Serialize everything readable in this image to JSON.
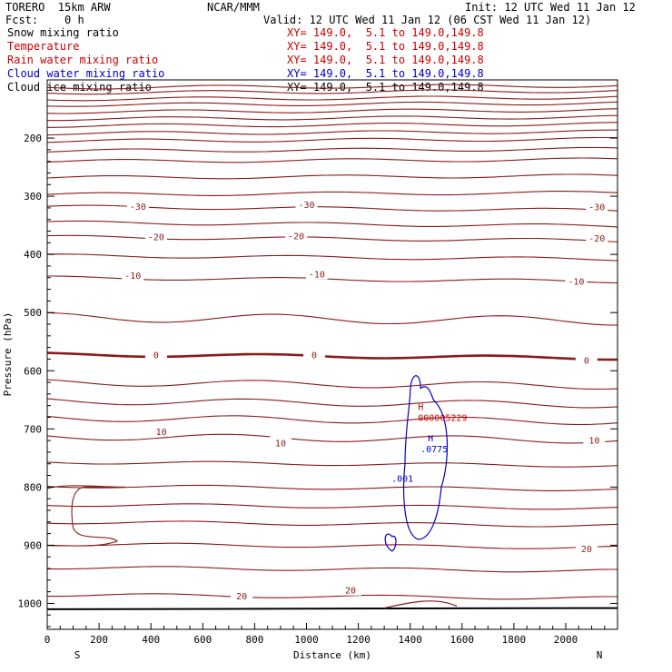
{
  "header": {
    "model": "TORERO  15km ARW",
    "org": "NCAR/MMM",
    "init": "Init: 12 UTC Wed 11 Jan 12",
    "fcst": "Fcst:    0 h",
    "valid": "Valid: 12 UTC Wed 11 Jan 12 (06 CST Wed 11 Jan 12)"
  },
  "fields": [
    {
      "name": "Snow mixing ratio",
      "xy": "",
      "color": "#000000"
    },
    {
      "name": "Temperature",
      "xy": "XY= 149.0,  5.1 to 149.0,149.8",
      "color": "#cc0000"
    },
    {
      "name": "Rain water mixing ratio",
      "xy": "XY= 149.0,  5.1 to 149.0,149.8",
      "color": "#cc0000"
    },
    {
      "name": "Cloud water mixing ratio",
      "xy": "XY= 149.0,  5.1 to 149.0,149.8",
      "color": "#0000cc"
    },
    {
      "name": "Cloud ice mixing ratio",
      "xy": "XY= 149.0,  5.1 to 149.0,149.8",
      "color": "#000000"
    }
  ],
  "fields_xy_first": "XY= 149.0,  5.1 to 149.0,149.8",
  "chart_data": {
    "type": "cross-section contour",
    "xlabel": "Distance (km)",
    "ylabel": "Pressure (hPa)",
    "xlim": [
      0,
      2200
    ],
    "ylim": [
      1050,
      100
    ],
    "x_ticks": [
      "0",
      "200",
      "400",
      "600",
      "800",
      "1000",
      "1200",
      "1400",
      "1600",
      "1800",
      "2000"
    ],
    "y_ticks": [
      "200",
      "300",
      "400",
      "500",
      "600",
      "700",
      "800",
      "900",
      "1000"
    ],
    "x_end_labels": {
      "left": "S",
      "right": "N"
    },
    "temperature_contour_labels": [
      "-30",
      "-20",
      "-10",
      "0",
      "10",
      "20"
    ],
    "temperature_label_positions": [
      {
        "text": "-30",
        "x": [
          350,
          1000,
          2120
        ],
        "p": [
          317,
          314,
          318
        ]
      },
      {
        "text": "-20",
        "x": [
          420,
          960,
          2120
        ],
        "p": [
          369,
          368,
          372
        ]
      },
      {
        "text": "-10",
        "x": [
          330,
          1040,
          2040
        ],
        "p": [
          436,
          433,
          446
        ]
      },
      {
        "text": "0",
        "x": [
          420,
          1030,
          2080
        ],
        "p": [
          572,
          572,
          582
        ]
      },
      {
        "text": "10",
        "x": [
          440,
          900,
          2110
        ],
        "p": [
          704,
          724,
          719
        ]
      },
      {
        "text": "20",
        "x": [
          750,
          1170,
          2080
        ],
        "p": [
          987,
          977,
          906
        ]
      }
    ],
    "temperature_contours": [
      {
        "x": [
          0,
          2200
        ],
        "p": [
          1010,
          1008
        ],
        "bold": true
      },
      {
        "x": [
          0,
          2200
        ],
        "p": [
          572,
          582
        ],
        "bold": true
      }
    ],
    "rain_water_max": {
      "label": "H",
      "value": "000005229",
      "x": 1430,
      "p": 683
    },
    "cloud_water_max": {
      "label": "H",
      "value": ".0775",
      "x": 1440,
      "p": 723
    },
    "cloud_water_contour_label": {
      "text": ".001",
      "x": 1370,
      "p": 791
    }
  }
}
